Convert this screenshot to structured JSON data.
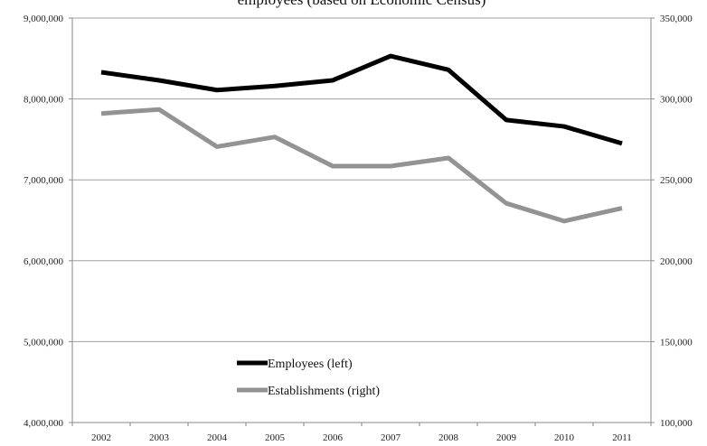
{
  "chart_data": {
    "type": "line",
    "title": "employees (based on Economic Census)",
    "categories": [
      "2002",
      "2003",
      "2004",
      "2005",
      "2006",
      "2007",
      "2008",
      "2009",
      "2010",
      "2011"
    ],
    "y_left": {
      "ylim": [
        4000000,
        9000000
      ],
      "ticks": [
        4000000,
        5000000,
        6000000,
        7000000,
        8000000,
        9000000
      ],
      "tick_labels": [
        "4,000,000",
        "5,000,000",
        "6,000,000",
        "7,000,000",
        "8,000,000",
        "9,000,000"
      ]
    },
    "y_right": {
      "ylim": [
        100000,
        350000
      ],
      "ticks": [
        100000,
        150000,
        200000,
        250000,
        300000,
        350000
      ],
      "tick_labels": [
        "100,000",
        "150,000",
        "200,000",
        "250,000",
        "300,000",
        "350,000"
      ]
    },
    "series": [
      {
        "name": "Employees (left)",
        "axis": "left",
        "color": "#000000",
        "values": [
          8330000,
          8230000,
          8110000,
          8160000,
          8230000,
          8530000,
          8360000,
          7740000,
          7660000,
          7450000
        ]
      },
      {
        "name": "Establishments (right)",
        "axis": "right",
        "color": "#939393",
        "values": [
          291000,
          293500,
          270500,
          276500,
          258500,
          258500,
          263500,
          235500,
          224500,
          232500
        ]
      }
    ],
    "grid": true,
    "legend_position": "bottom-center"
  }
}
